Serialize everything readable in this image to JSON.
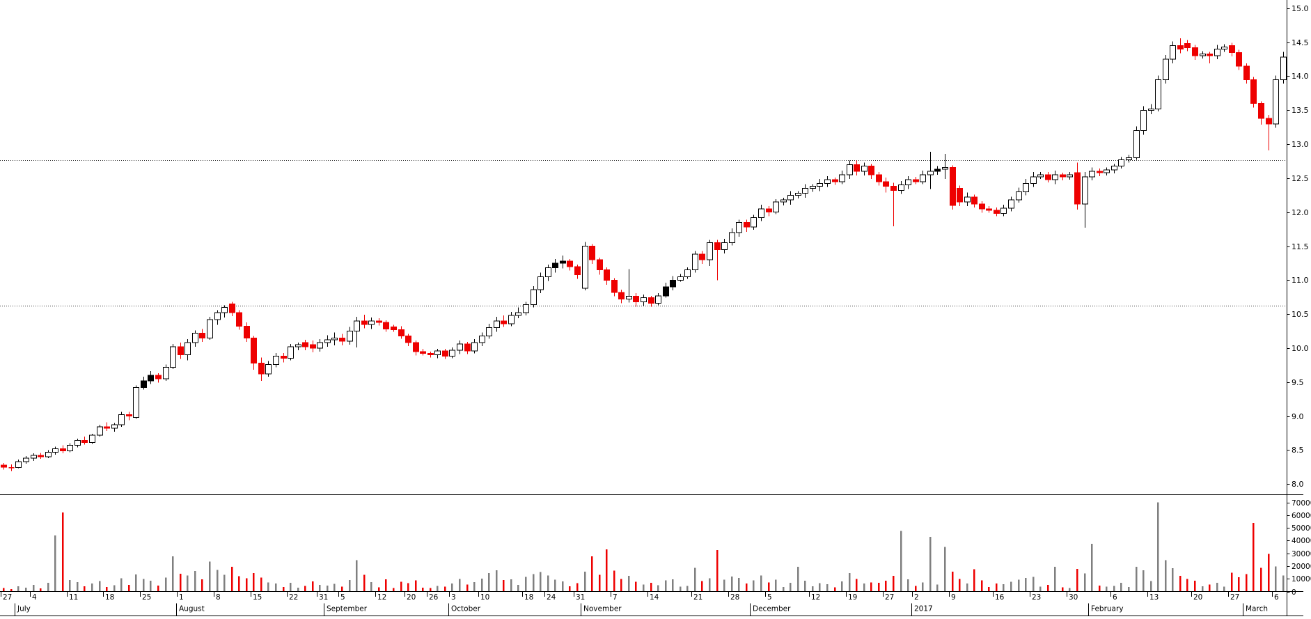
{
  "window": {
    "background": "#ffffff"
  },
  "chart_data": {
    "type": "candlestick",
    "title": "",
    "price_axis": {
      "labels": [
        "15.0",
        "14.5",
        "14.0",
        "13.5",
        "13.0",
        "12.5",
        "12.0",
        "11.5",
        "11.0",
        "10.5",
        "10.0",
        "9.5",
        "9.0",
        "8.5",
        "8.0"
      ],
      "min": 7.93,
      "max": 15.06
    },
    "volume_axis": {
      "labels": [
        "70000",
        "60000",
        "50000",
        "40000",
        "30000",
        "20000",
        "10000",
        "0"
      ],
      "max": 70000
    },
    "reference_lines": [
      10.62,
      12.77
    ],
    "x_axis": {
      "week_ticks": [
        {
          "label": "27",
          "bar": 0
        },
        {
          "label": "4",
          "bar": 4
        },
        {
          "label": "11",
          "bar": 9
        },
        {
          "label": "18",
          "bar": 14
        },
        {
          "label": "25",
          "bar": 19
        },
        {
          "label": "1",
          "bar": 24
        },
        {
          "label": "8",
          "bar": 29
        },
        {
          "label": "15",
          "bar": 34
        },
        {
          "label": "22",
          "bar": 39
        },
        {
          "label": "31",
          "bar": 43
        },
        {
          "label": "5",
          "bar": 46
        },
        {
          "label": "12",
          "bar": 51
        },
        {
          "label": "20",
          "bar": 55
        },
        {
          "label": "26",
          "bar": 58
        },
        {
          "label": "3",
          "bar": 61
        },
        {
          "label": "10",
          "bar": 65
        },
        {
          "label": "18",
          "bar": 71
        },
        {
          "label": "24",
          "bar": 74
        },
        {
          "label": "31",
          "bar": 78
        },
        {
          "label": "7",
          "bar": 83
        },
        {
          "label": "14",
          "bar": 88
        },
        {
          "label": "21",
          "bar": 94
        },
        {
          "label": "28",
          "bar": 99
        },
        {
          "label": "5",
          "bar": 104
        },
        {
          "label": "12",
          "bar": 110
        },
        {
          "label": "19",
          "bar": 115
        },
        {
          "label": "27",
          "bar": 120
        },
        {
          "label": "2",
          "bar": 124
        },
        {
          "label": "9",
          "bar": 129
        },
        {
          "label": "16",
          "bar": 135
        },
        {
          "label": "23",
          "bar": 140
        },
        {
          "label": "30",
          "bar": 145
        },
        {
          "label": "6",
          "bar": 151
        },
        {
          "label": "13",
          "bar": 156
        },
        {
          "label": "20",
          "bar": 162
        },
        {
          "label": "27",
          "bar": 167
        },
        {
          "label": "6",
          "bar": 173
        }
      ],
      "month_labels": [
        {
          "label": "July",
          "bar": 2
        },
        {
          "label": "August",
          "bar": 24
        },
        {
          "label": "September",
          "bar": 44
        },
        {
          "label": "October",
          "bar": 61
        },
        {
          "label": "November",
          "bar": 79
        },
        {
          "label": "December",
          "bar": 102
        },
        {
          "label": "2017",
          "bar": 124
        },
        {
          "label": "February",
          "bar": 148
        },
        {
          "label": "March",
          "bar": 169
        }
      ]
    },
    "black_candle_indexes": [
      19,
      20,
      75,
      76,
      90,
      91,
      127
    ],
    "colors": {
      "up_fill": "#ffffff",
      "down_fill": "#ee0000",
      "black_fill": "#000000",
      "outline": "#000000",
      "volume_up": "#7f7f7f",
      "volume_down": "#ee0000",
      "reference_line": "#333333",
      "axis": "#000000"
    },
    "candles": [
      [
        8.28,
        8.31,
        8.21,
        8.25,
        2600
      ],
      [
        8.25,
        8.29,
        8.19,
        8.24,
        1900
      ],
      [
        8.24,
        8.36,
        8.23,
        8.33,
        4200
      ],
      [
        8.33,
        8.41,
        8.3,
        8.38,
        3100
      ],
      [
        8.38,
        8.45,
        8.34,
        8.42,
        5200
      ],
      [
        8.42,
        8.46,
        8.37,
        8.4,
        2400
      ],
      [
        8.4,
        8.5,
        8.38,
        8.47,
        6800
      ],
      [
        8.47,
        8.55,
        8.43,
        8.52,
        44000
      ],
      [
        8.52,
        8.57,
        8.45,
        8.49,
        62000
      ],
      [
        8.49,
        8.6,
        8.47,
        8.57,
        9000
      ],
      [
        8.57,
        8.67,
        8.54,
        8.64,
        7500
      ],
      [
        8.64,
        8.7,
        8.58,
        8.61,
        4100
      ],
      [
        8.61,
        8.74,
        8.59,
        8.72,
        6300
      ],
      [
        8.72,
        8.87,
        8.7,
        8.84,
        8200
      ],
      [
        8.84,
        8.91,
        8.78,
        8.82,
        3600
      ],
      [
        8.82,
        8.9,
        8.77,
        8.87,
        4800
      ],
      [
        8.87,
        9.06,
        8.84,
        9.02,
        10500
      ],
      [
        9.02,
        9.06,
        8.94,
        9.0,
        5200
      ],
      [
        8.98,
        9.45,
        8.96,
        9.42,
        13500
      ],
      [
        9.42,
        9.58,
        9.39,
        9.52,
        9800
      ],
      [
        9.52,
        9.66,
        9.47,
        9.6,
        8600
      ],
      [
        9.6,
        9.63,
        9.49,
        9.55,
        4700
      ],
      [
        9.55,
        9.76,
        9.52,
        9.72,
        11000
      ],
      [
        9.72,
        10.06,
        9.69,
        10.02,
        27500
      ],
      [
        10.02,
        10.08,
        9.84,
        9.9,
        14000
      ],
      [
        9.9,
        10.13,
        9.82,
        10.08,
        12500
      ],
      [
        10.08,
        10.26,
        10.02,
        10.22,
        16000
      ],
      [
        10.22,
        10.28,
        10.09,
        10.15,
        9500
      ],
      [
        10.15,
        10.46,
        10.12,
        10.42,
        23500
      ],
      [
        10.42,
        10.56,
        10.34,
        10.52,
        17000
      ],
      [
        10.52,
        10.63,
        10.45,
        10.6,
        13000
      ],
      [
        10.65,
        10.68,
        10.47,
        10.52,
        19500
      ],
      [
        10.52,
        10.56,
        10.27,
        10.32,
        12000
      ],
      [
        10.32,
        10.38,
        10.09,
        10.15,
        10500
      ],
      [
        10.15,
        10.18,
        9.68,
        9.78,
        14500
      ],
      [
        9.78,
        9.86,
        9.52,
        9.62,
        11000
      ],
      [
        9.62,
        9.81,
        9.58,
        9.76,
        7200
      ],
      [
        9.76,
        9.93,
        9.72,
        9.88,
        6400
      ],
      [
        9.88,
        9.93,
        9.79,
        9.85,
        3500
      ],
      [
        9.85,
        10.06,
        9.82,
        10.02,
        6800
      ],
      [
        10.02,
        10.08,
        9.97,
        10.05,
        2900
      ],
      [
        10.08,
        10.12,
        9.97,
        10.02,
        4300
      ],
      [
        10.05,
        10.11,
        9.94,
        10.0,
        7800
      ],
      [
        10.0,
        10.13,
        9.95,
        10.08,
        5100
      ],
      [
        10.08,
        10.19,
        10.02,
        10.12,
        4600
      ],
      [
        10.12,
        10.23,
        10.04,
        10.15,
        6100
      ],
      [
        10.15,
        10.21,
        10.04,
        10.1,
        3800
      ],
      [
        10.1,
        10.31,
        10.05,
        10.25,
        8900
      ],
      [
        10.25,
        10.46,
        10.01,
        10.4,
        24500
      ],
      [
        10.4,
        10.49,
        10.29,
        10.35,
        13000
      ],
      [
        10.35,
        10.45,
        10.28,
        10.4,
        7400
      ],
      [
        10.4,
        10.44,
        10.33,
        10.38,
        3200
      ],
      [
        10.38,
        10.41,
        10.24,
        10.28,
        9600
      ],
      [
        10.31,
        10.34,
        10.24,
        10.27,
        2800
      ],
      [
        10.27,
        10.32,
        10.14,
        10.18,
        7700
      ],
      [
        10.18,
        10.21,
        10.03,
        10.08,
        6500
      ],
      [
        10.08,
        10.11,
        9.89,
        9.95,
        8800
      ],
      [
        9.95,
        9.99,
        9.89,
        9.92,
        3100
      ],
      [
        9.92,
        9.95,
        9.86,
        9.9,
        2600
      ],
      [
        9.9,
        9.99,
        9.85,
        9.96,
        4400
      ],
      [
        9.96,
        9.99,
        9.84,
        9.88,
        3900
      ],
      [
        9.88,
        10.01,
        9.85,
        9.97,
        6200
      ],
      [
        9.97,
        10.11,
        9.91,
        10.06,
        9800
      ],
      [
        10.06,
        10.09,
        9.91,
        9.96,
        5600
      ],
      [
        9.96,
        10.13,
        9.92,
        10.08,
        7300
      ],
      [
        10.08,
        10.23,
        10.03,
        10.18,
        10200
      ],
      [
        10.18,
        10.36,
        10.14,
        10.3,
        14500
      ],
      [
        10.3,
        10.46,
        10.24,
        10.4,
        16800
      ],
      [
        10.4,
        10.48,
        10.31,
        10.36,
        8900
      ],
      [
        10.36,
        10.53,
        10.32,
        10.48,
        9700
      ],
      [
        10.48,
        10.6,
        10.44,
        10.52,
        5300
      ],
      [
        10.52,
        10.68,
        10.48,
        10.64,
        11500
      ],
      [
        10.64,
        10.91,
        10.6,
        10.86,
        13800
      ],
      [
        10.86,
        11.11,
        10.81,
        11.05,
        15200
      ],
      [
        11.05,
        11.23,
        10.99,
        11.18,
        12600
      ],
      [
        11.18,
        11.31,
        11.11,
        11.25,
        9400
      ],
      [
        11.25,
        11.36,
        11.17,
        11.28,
        7800
      ],
      [
        11.28,
        11.31,
        11.14,
        11.2,
        4200
      ],
      [
        11.2,
        11.23,
        11.02,
        11.08,
        6600
      ],
      [
        10.88,
        11.56,
        10.85,
        11.5,
        15500
      ],
      [
        11.5,
        11.53,
        11.24,
        11.3,
        27500
      ],
      [
        11.3,
        11.33,
        11.08,
        11.15,
        13200
      ],
      [
        11.15,
        11.19,
        10.93,
        11.0,
        33000
      ],
      [
        11.0,
        11.03,
        10.76,
        10.82,
        16500
      ],
      [
        10.82,
        10.86,
        10.66,
        10.72,
        9800
      ],
      [
        10.72,
        11.16,
        10.67,
        10.76,
        12400
      ],
      [
        10.76,
        10.81,
        10.61,
        10.68,
        7600
      ],
      [
        10.68,
        10.79,
        10.62,
        10.74,
        5400
      ],
      [
        10.74,
        10.77,
        10.61,
        10.66,
        6800
      ],
      [
        10.66,
        10.81,
        10.63,
        10.77,
        4900
      ],
      [
        10.77,
        10.96,
        10.74,
        10.9,
        8800
      ],
      [
        10.9,
        11.06,
        10.85,
        11.0,
        9600
      ],
      [
        11.0,
        11.09,
        10.98,
        11.05,
        3800
      ],
      [
        11.05,
        11.19,
        11.02,
        11.15,
        4400
      ],
      [
        11.15,
        11.43,
        11.11,
        11.38,
        18500
      ],
      [
        11.38,
        11.43,
        11.24,
        11.3,
        8200
      ],
      [
        11.3,
        11.59,
        11.21,
        11.55,
        10400
      ],
      [
        11.55,
        11.59,
        11.0,
        11.45,
        32500
      ],
      [
        11.45,
        11.61,
        11.39,
        11.55,
        9200
      ],
      [
        11.55,
        11.76,
        11.51,
        11.7,
        11800
      ],
      [
        11.7,
        11.89,
        11.64,
        11.85,
        10600
      ],
      [
        11.85,
        11.89,
        11.71,
        11.78,
        6400
      ],
      [
        11.78,
        11.96,
        11.74,
        11.92,
        8800
      ],
      [
        11.92,
        12.11,
        11.87,
        12.05,
        12500
      ],
      [
        12.05,
        12.09,
        11.94,
        12.0,
        7200
      ],
      [
        12.0,
        12.19,
        11.97,
        12.15,
        9400
      ],
      [
        12.15,
        12.21,
        12.1,
        12.18,
        3600
      ],
      [
        12.18,
        12.31,
        12.11,
        12.25,
        6800
      ],
      [
        12.25,
        12.31,
        12.2,
        12.28,
        19500
      ],
      [
        12.28,
        12.41,
        12.21,
        12.35,
        8600
      ],
      [
        12.35,
        12.41,
        12.3,
        12.38,
        4200
      ],
      [
        12.38,
        12.49,
        12.31,
        12.42,
        6600
      ],
      [
        12.42,
        12.53,
        12.37,
        12.48,
        5800
      ],
      [
        12.48,
        12.51,
        12.4,
        12.45,
        3400
      ],
      [
        12.45,
        12.61,
        12.41,
        12.55,
        7800
      ],
      [
        12.55,
        12.76,
        12.49,
        12.7,
        14500
      ],
      [
        12.7,
        12.76,
        12.54,
        12.6,
        9800
      ],
      [
        12.6,
        12.73,
        12.54,
        12.68,
        6400
      ],
      [
        12.68,
        12.71,
        12.49,
        12.55,
        7200
      ],
      [
        12.55,
        12.59,
        12.39,
        12.45,
        6800
      ],
      [
        12.45,
        12.51,
        12.29,
        12.38,
        8400
      ],
      [
        12.38,
        12.43,
        11.79,
        12.32,
        12200
      ],
      [
        12.32,
        12.46,
        12.27,
        12.4,
        47500
      ],
      [
        12.4,
        12.53,
        12.34,
        12.48,
        9600
      ],
      [
        12.48,
        12.52,
        12.41,
        12.45,
        4400
      ],
      [
        12.45,
        12.61,
        12.41,
        12.55,
        7200
      ],
      [
        12.55,
        12.89,
        12.34,
        12.6,
        43000
      ],
      [
        12.6,
        12.68,
        12.55,
        12.63,
        5600
      ],
      [
        12.63,
        12.86,
        12.49,
        12.66,
        35000
      ],
      [
        12.66,
        12.69,
        12.04,
        12.1,
        15500
      ],
      [
        12.35,
        12.39,
        12.09,
        12.15,
        9800
      ],
      [
        12.15,
        12.29,
        12.09,
        12.22,
        6200
      ],
      [
        12.22,
        12.26,
        12.07,
        12.12,
        17500
      ],
      [
        12.12,
        12.16,
        11.99,
        12.05,
        8800
      ],
      [
        12.05,
        12.09,
        11.99,
        12.03,
        3600
      ],
      [
        12.03,
        12.07,
        11.94,
        11.98,
        6400
      ],
      [
        11.98,
        12.11,
        11.94,
        12.06,
        5800
      ],
      [
        12.06,
        12.23,
        12.01,
        12.18,
        7600
      ],
      [
        12.18,
        12.36,
        12.14,
        12.3,
        9200
      ],
      [
        12.3,
        12.49,
        12.25,
        12.42,
        10800
      ],
      [
        12.42,
        12.59,
        12.37,
        12.52,
        11500
      ],
      [
        12.52,
        12.59,
        12.49,
        12.55,
        3800
      ],
      [
        12.55,
        12.59,
        12.44,
        12.48,
        5200
      ],
      [
        12.48,
        12.61,
        12.41,
        12.55,
        19500
      ],
      [
        12.55,
        12.58,
        12.47,
        12.52,
        3400
      ],
      [
        12.52,
        12.59,
        12.48,
        12.55,
        2800
      ],
      [
        12.58,
        12.73,
        12.04,
        12.12,
        17800
      ],
      [
        12.12,
        12.59,
        11.77,
        12.52,
        14200
      ],
      [
        12.52,
        12.66,
        12.47,
        12.6,
        37500
      ],
      [
        12.6,
        12.64,
        12.53,
        12.58,
        4600
      ],
      [
        12.58,
        12.66,
        12.54,
        12.62,
        3800
      ],
      [
        12.62,
        12.71,
        12.57,
        12.68,
        4400
      ],
      [
        12.68,
        12.81,
        12.64,
        12.77,
        6800
      ],
      [
        12.77,
        12.84,
        12.73,
        12.8,
        3600
      ],
      [
        12.8,
        13.26,
        12.77,
        13.2,
        19500
      ],
      [
        13.2,
        13.56,
        13.14,
        13.5,
        16800
      ],
      [
        13.5,
        13.59,
        13.44,
        13.52,
        8200
      ],
      [
        13.52,
        14.01,
        13.48,
        13.95,
        70000
      ],
      [
        13.95,
        14.31,
        13.89,
        14.25,
        24500
      ],
      [
        14.25,
        14.51,
        14.19,
        14.45,
        18200
      ],
      [
        14.45,
        14.56,
        14.34,
        14.4,
        12400
      ],
      [
        14.48,
        14.53,
        14.37,
        14.42,
        9800
      ],
      [
        14.42,
        14.46,
        14.24,
        14.3,
        8600
      ],
      [
        14.3,
        14.37,
        14.26,
        14.33,
        4200
      ],
      [
        14.33,
        14.36,
        14.19,
        14.3,
        5600
      ],
      [
        14.3,
        14.46,
        14.25,
        14.4,
        6800
      ],
      [
        14.4,
        14.47,
        14.36,
        14.43,
        3800
      ],
      [
        14.45,
        14.49,
        14.29,
        14.35,
        14800
      ],
      [
        14.35,
        14.39,
        14.09,
        14.15,
        11200
      ],
      [
        14.15,
        14.19,
        13.89,
        13.95,
        13600
      ],
      [
        13.95,
        13.99,
        13.54,
        13.6,
        54000
      ],
      [
        13.6,
        13.63,
        13.29,
        13.38,
        18500
      ],
      [
        13.38,
        13.43,
        12.91,
        13.3,
        29500
      ],
      [
        13.3,
        14.01,
        13.24,
        13.95,
        19800
      ],
      [
        13.95,
        14.36,
        13.89,
        14.28,
        12600
      ]
    ]
  }
}
